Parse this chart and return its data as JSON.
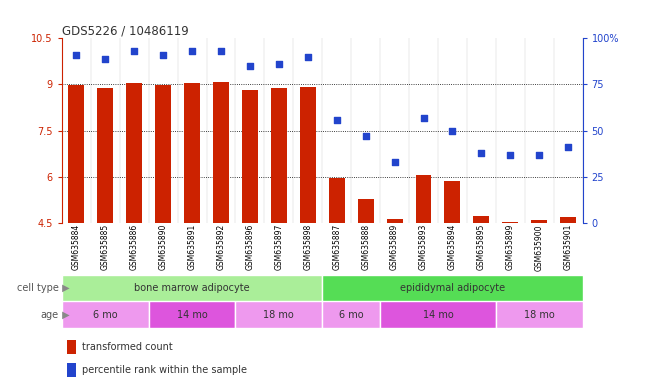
{
  "title": "GDS5226 / 10486119",
  "samples": [
    "GSM635884",
    "GSM635885",
    "GSM635886",
    "GSM635890",
    "GSM635891",
    "GSM635892",
    "GSM635896",
    "GSM635897",
    "GSM635898",
    "GSM635887",
    "GSM635888",
    "GSM635889",
    "GSM635893",
    "GSM635894",
    "GSM635895",
    "GSM635899",
    "GSM635900",
    "GSM635901"
  ],
  "bar_values": [
    8.98,
    8.88,
    9.05,
    8.98,
    9.05,
    9.08,
    8.82,
    8.87,
    8.93,
    5.95,
    5.28,
    4.62,
    6.05,
    5.85,
    4.72,
    4.52,
    4.58,
    4.68
  ],
  "dot_values": [
    91,
    89,
    93,
    91,
    93,
    93,
    85,
    86,
    90,
    56,
    47,
    33,
    57,
    50,
    38,
    37,
    37,
    41
  ],
  "ylim": [
    4.5,
    10.5
  ],
  "y2lim": [
    0,
    100
  ],
  "yticks": [
    4.5,
    6.0,
    7.5,
    9.0,
    10.5
  ],
  "ytick_labels": [
    "4.5",
    "6",
    "7.5",
    "9",
    "10.5"
  ],
  "y2ticks": [
    0,
    25,
    50,
    75,
    100
  ],
  "y2tick_labels": [
    "0",
    "25",
    "50",
    "75",
    "100%"
  ],
  "bar_color": "#cc2200",
  "dot_color": "#2244cc",
  "bar_width": 0.55,
  "cell_type_groups": [
    {
      "label": "bone marrow adipocyte",
      "start": 0,
      "end": 9,
      "color": "#aaee99"
    },
    {
      "label": "epididymal adipocyte",
      "start": 9,
      "end": 18,
      "color": "#55dd55"
    }
  ],
  "age_groups": [
    {
      "label": "6 mo",
      "start": 0,
      "end": 3,
      "color": "#ee99ee"
    },
    {
      "label": "14 mo",
      "start": 3,
      "end": 6,
      "color": "#dd55dd"
    },
    {
      "label": "18 mo",
      "start": 6,
      "end": 9,
      "color": "#ee99ee"
    },
    {
      "label": "6 mo",
      "start": 9,
      "end": 11,
      "color": "#ee99ee"
    },
    {
      "label": "14 mo",
      "start": 11,
      "end": 15,
      "color": "#dd55dd"
    },
    {
      "label": "18 mo",
      "start": 15,
      "end": 18,
      "color": "#ee99ee"
    }
  ],
  "cell_type_label": "cell type",
  "age_label": "age",
  "legend_bar_label": "transformed count",
  "legend_dot_label": "percentile rank within the sample",
  "bg_color": "#ffffff",
  "tick_color_left": "#cc2200",
  "tick_color_right": "#2244cc"
}
